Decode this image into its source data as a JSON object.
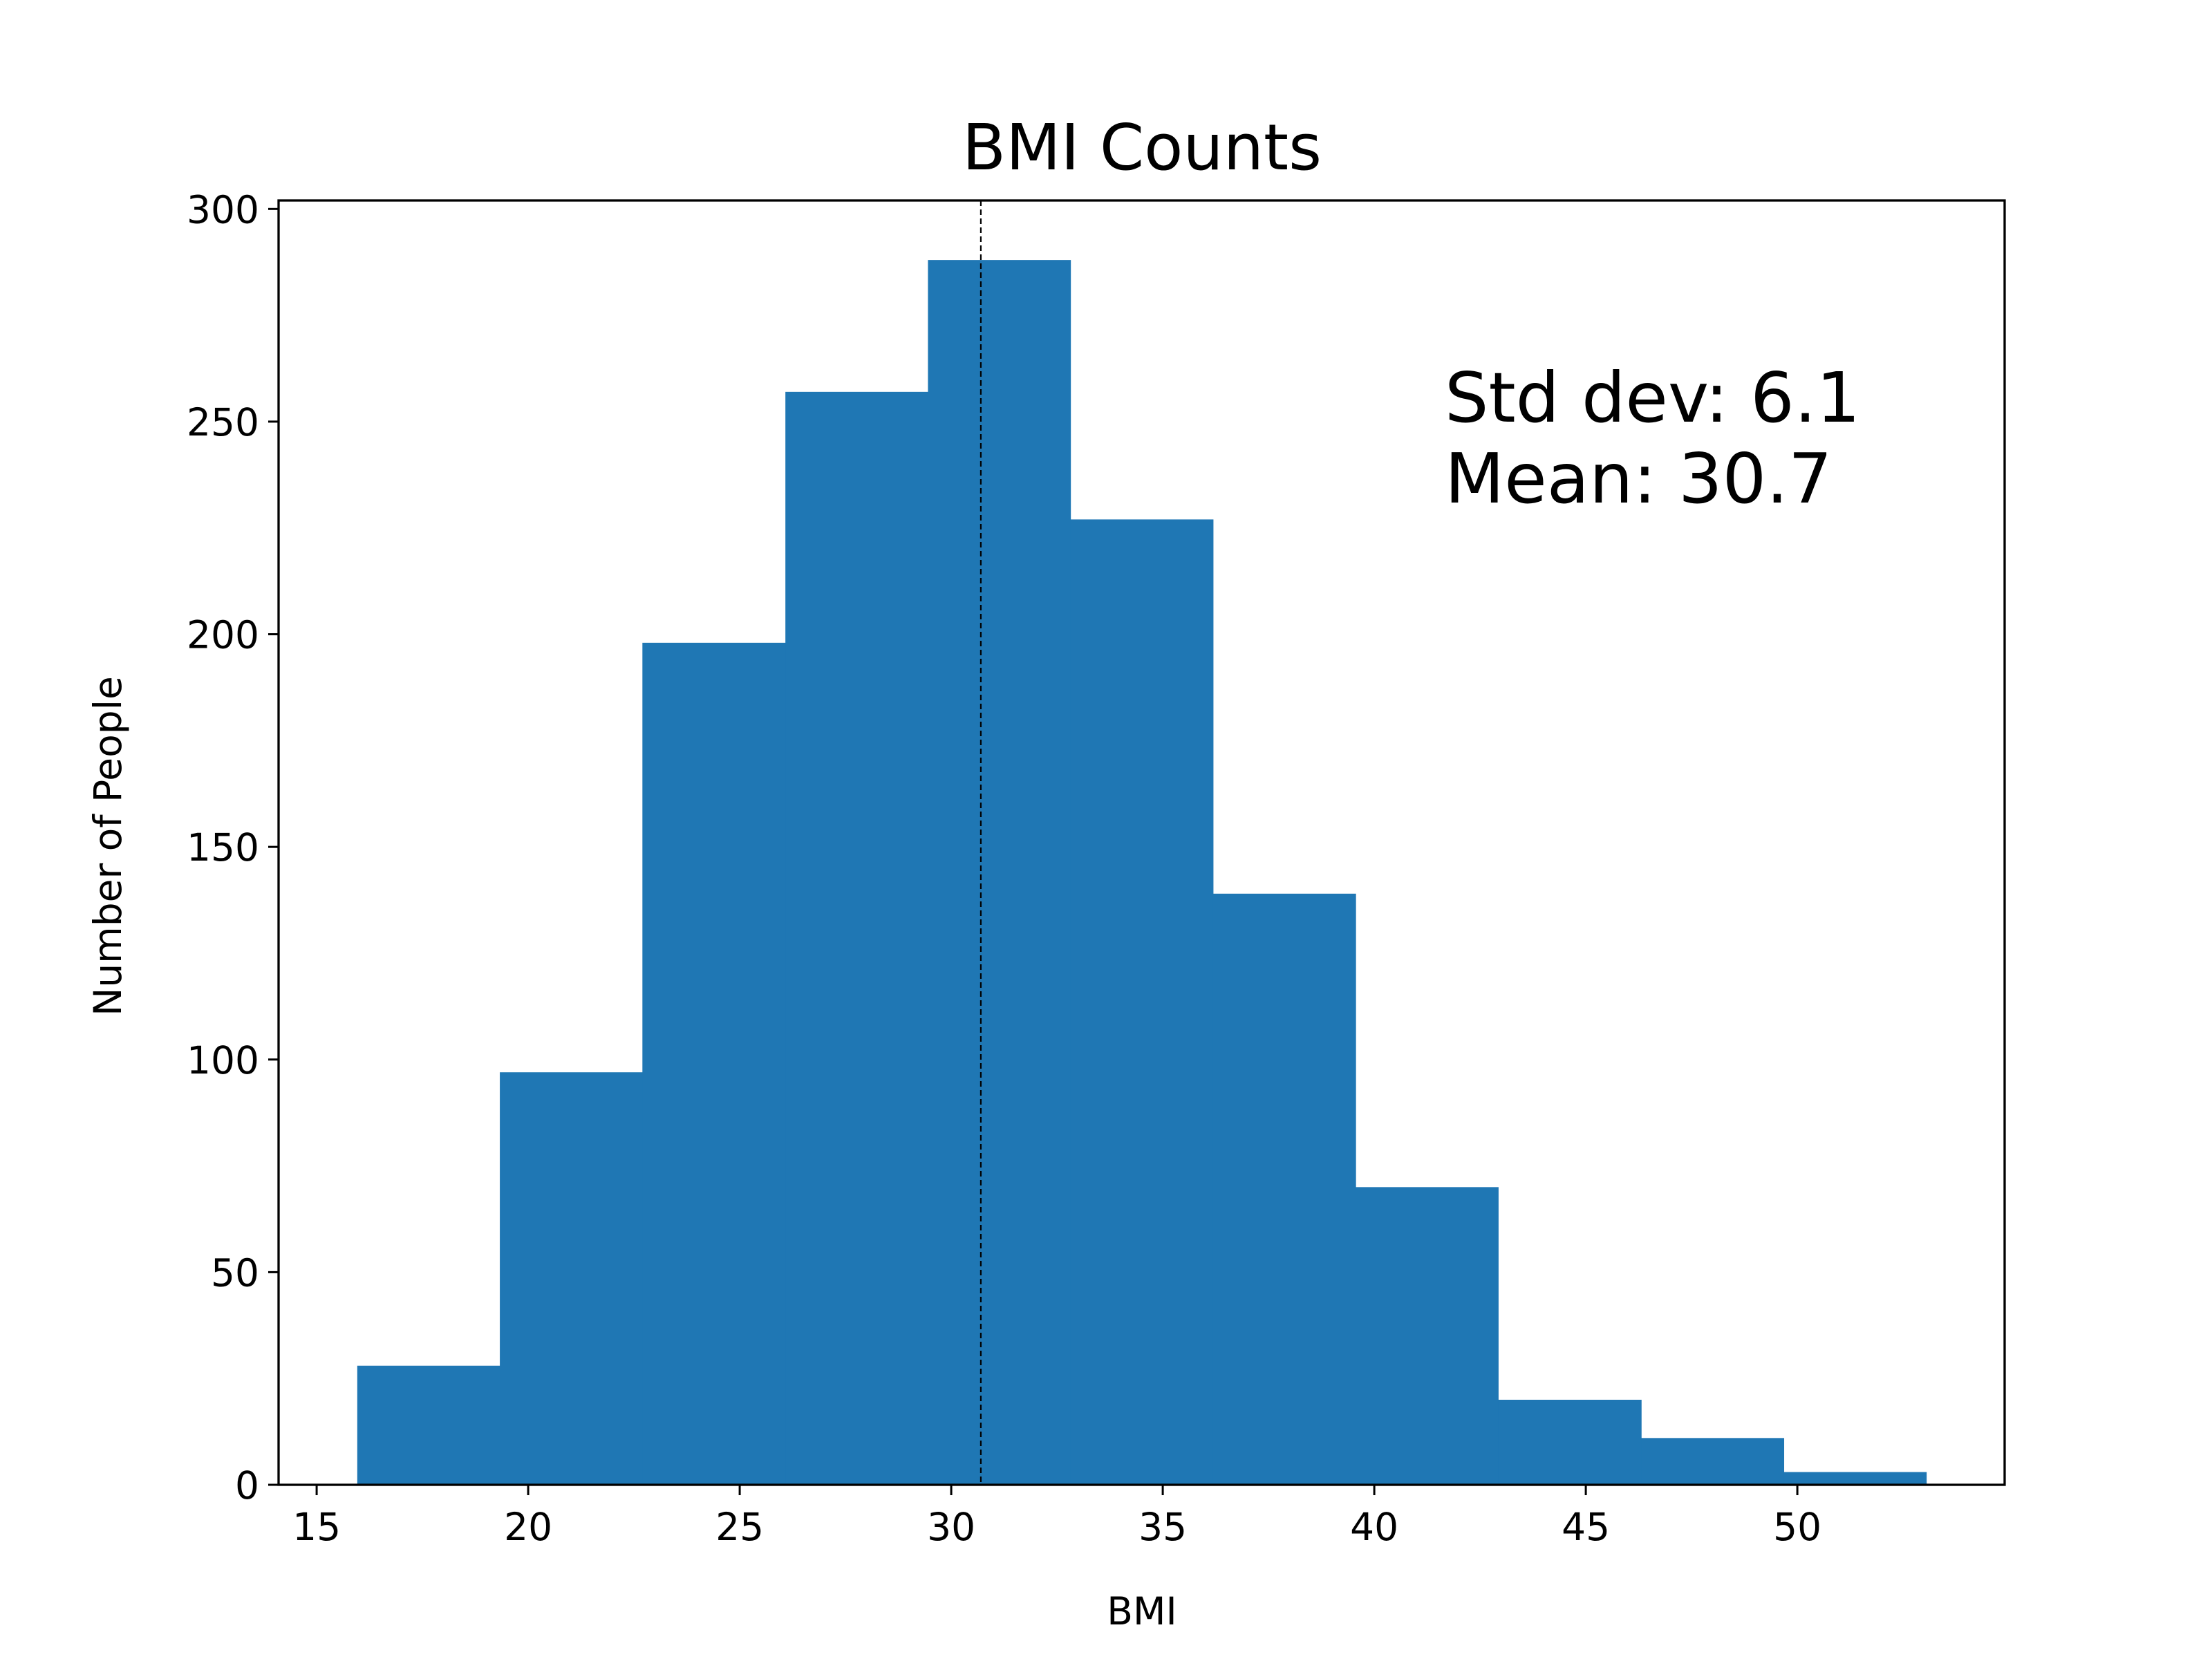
{
  "chart_data": {
    "type": "bar",
    "title": "BMI Counts",
    "xlabel": "BMI",
    "ylabel": "Number of People",
    "xlim": [
      14.1,
      54.9
    ],
    "ylim": [
      0,
      302
    ],
    "xticks": [
      15,
      20,
      25,
      30,
      35,
      40,
      45,
      50
    ],
    "yticks": [
      0,
      50,
      100,
      150,
      200,
      250,
      300
    ],
    "bins": [
      {
        "x0": 15.96,
        "x1": 19.33,
        "count": 28
      },
      {
        "x0": 19.33,
        "x1": 22.7,
        "count": 97
      },
      {
        "x0": 22.7,
        "x1": 26.08,
        "count": 198
      },
      {
        "x0": 26.08,
        "x1": 29.45,
        "count": 257
      },
      {
        "x0": 29.45,
        "x1": 32.82,
        "count": 288
      },
      {
        "x0": 32.82,
        "x1": 36.19,
        "count": 227
      },
      {
        "x0": 36.19,
        "x1": 39.56,
        "count": 139
      },
      {
        "x0": 39.56,
        "x1": 42.93,
        "count": 70
      },
      {
        "x0": 42.93,
        "x1": 46.31,
        "count": 20
      },
      {
        "x0": 46.31,
        "x1": 49.68,
        "count": 11
      },
      {
        "x0": 49.68,
        "x1": 53.05,
        "count": 3
      }
    ],
    "bar_color": "#1f77b4",
    "mean_line": {
      "x": 30.7,
      "style": "dashed",
      "color": "#000000"
    },
    "annotations": [
      "Std dev: 6.1",
      "Mean: 30.7"
    ],
    "grid": false,
    "legend": "none"
  }
}
